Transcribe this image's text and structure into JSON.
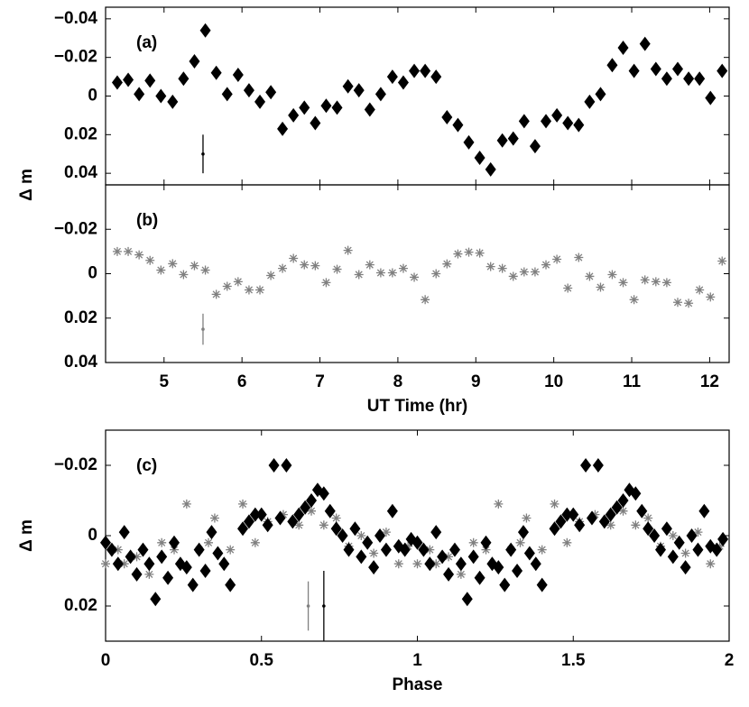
{
  "chart_data": [
    {
      "type": "scatter",
      "label": "(a)",
      "ylabel": "Δ m",
      "xlim": [
        4.25,
        12.25
      ],
      "xticks": [
        5,
        6,
        7,
        8,
        9,
        10,
        11,
        12
      ],
      "xtick_labels": false,
      "ylim": [
        -0.046,
        0.046
      ],
      "y_reversed": true,
      "yticks": [
        {
          "value": -0.04,
          "label": "−0.04"
        },
        {
          "value": -0.02,
          "label": "−0.02"
        },
        0,
        0.02,
        0.04
      ],
      "series": [
        {
          "marker": "diamond",
          "color": "#000000",
          "x": [
            4.4,
            4.54,
            4.68,
            4.82,
            4.96,
            5.11,
            5.25,
            5.39,
            5.53,
            5.67,
            5.81,
            5.95,
            6.09,
            6.23,
            6.37,
            6.52,
            6.66,
            6.8,
            6.94,
            7.08,
            7.22,
            7.36,
            7.5,
            7.64,
            7.78,
            7.93,
            8.07,
            8.21,
            8.35,
            8.49,
            8.63,
            8.77,
            8.91,
            9.05,
            9.19,
            9.34,
            9.48,
            9.62,
            9.76,
            9.9,
            10.04,
            10.18,
            10.32,
            10.46,
            10.6,
            10.75,
            10.89,
            11.03,
            11.17,
            11.31,
            11.45,
            11.59,
            11.73,
            11.87,
            12.01,
            12.16
          ],
          "values": [
            -0.007,
            -0.0084,
            -0.001,
            -0.008,
            0,
            0.003,
            -0.009,
            -0.018,
            -0.034,
            -0.012,
            -0.001,
            -0.011,
            -0.003,
            0.003,
            -0.002,
            0.017,
            0.01,
            0.006,
            0.014,
            0.005,
            0.006,
            -0.005,
            -0.003,
            0.007,
            -0.001,
            -0.01,
            -0.007,
            -0.013,
            -0.013,
            -0.01,
            0.011,
            0.015,
            0.024,
            0.032,
            0.038,
            0.023,
            0.022,
            0.013,
            0.026,
            0.013,
            0.01,
            0.014,
            0.015,
            0.003,
            -0.001,
            -0.016,
            -0.025,
            -0.013,
            -0.027,
            -0.014,
            -0.009,
            -0.014,
            -0.009,
            -0.009,
            0.001,
            -0.013
          ]
        }
      ],
      "error_bars": [
        {
          "x": 5.5,
          "y": 0.03,
          "error": 0.01,
          "color": "#000000"
        }
      ]
    },
    {
      "type": "scatter",
      "label": "(b)",
      "xlabel": "UT Time (hr)",
      "xlim": [
        4.25,
        12.25
      ],
      "xticks": [
        5,
        6,
        7,
        8,
        9,
        10,
        11,
        12
      ],
      "xtick_labels": true,
      "ylim": [
        -0.04,
        0.04
      ],
      "y_reversed": true,
      "yticks": [
        {
          "value": -0.02,
          "label": "−0.02"
        },
        0,
        0.02,
        0.04
      ],
      "series": [
        {
          "marker": "asterisk",
          "color": "#808080",
          "x": [
            4.4,
            4.54,
            4.68,
            4.82,
            4.96,
            5.11,
            5.25,
            5.39,
            5.53,
            5.67,
            5.81,
            5.95,
            6.09,
            6.23,
            6.37,
            6.52,
            6.66,
            6.8,
            6.94,
            7.08,
            7.22,
            7.36,
            7.5,
            7.64,
            7.78,
            7.93,
            8.07,
            8.21,
            8.35,
            8.49,
            8.63,
            8.77,
            8.91,
            9.05,
            9.19,
            9.34,
            9.48,
            9.62,
            9.76,
            9.9,
            10.04,
            10.18,
            10.32,
            10.46,
            10.6,
            10.75,
            10.89,
            11.03,
            11.17,
            11.31,
            11.45,
            11.59,
            11.73,
            11.87,
            12.01,
            12.16
          ],
          "values": [
            -0.01,
            -0.01,
            -0.0085,
            -0.006,
            -0.0016,
            -0.0045,
            0.0004,
            -0.0036,
            -0.0016,
            0.0093,
            0.0057,
            0.0036,
            0.0073,
            0.0073,
            0.0008,
            -0.0024,
            -0.0069,
            -0.004,
            -0.0036,
            0.004,
            -0.002,
            -0.0105,
            0.0004,
            -0.004,
            -0.0004,
            -0.0004,
            -0.0024,
            0.0016,
            0.0117,
            0,
            -0.0044,
            -0.0089,
            -0.0097,
            -0.0093,
            -0.0032,
            -0.0024,
            0.0012,
            -0.0008,
            -0.0008,
            -0.004,
            -0.0065,
            0.0065,
            -0.0073,
            0.0012,
            0.0061,
            0.0004,
            0.004,
            0.0117,
            0.0028,
            0.0036,
            0.004,
            0.0129,
            0.0133,
            0.0073,
            0.0105,
            -0.0057
          ]
        }
      ],
      "error_bars": [
        {
          "x": 5.5,
          "y": 0.025,
          "error": 0.007,
          "color": "#808080"
        }
      ]
    },
    {
      "type": "scatter",
      "label": "(c)",
      "ylabel": "Δ m",
      "xlabel": "Phase",
      "xlim": [
        0,
        2
      ],
      "xticks": [
        0,
        0.5,
        1,
        1.5,
        2
      ],
      "xtick_labels": true,
      "ylim": [
        -0.03,
        0.03
      ],
      "y_reversed": true,
      "yticks": [
        {
          "value": -0.02,
          "label": "−0.02"
        },
        0,
        0.02
      ],
      "series": [
        {
          "marker": "asterisk",
          "color": "#808080",
          "x": [
            0.0,
            0.04,
            0.06,
            0.1,
            0.14,
            0.18,
            0.22,
            0.26,
            0.3,
            0.33,
            0.35,
            0.4,
            0.44,
            0.48,
            0.52,
            0.57,
            0.62,
            0.66,
            0.7,
            0.74,
            0.78,
            0.82,
            0.86,
            0.9,
            0.94,
            0.97,
            1.0,
            1.04,
            1.06,
            1.1,
            1.14,
            1.18,
            1.22,
            1.26,
            1.3,
            1.33,
            1.35,
            1.4,
            1.44,
            1.48,
            1.52,
            1.57,
            1.62,
            1.66,
            1.7,
            1.74,
            1.78,
            1.82,
            1.86,
            1.9,
            1.94,
            1.97
          ],
          "values": [
            0.008,
            0.004,
            0.008,
            0.006,
            0.011,
            0.002,
            0.004,
            -0.009,
            0.004,
            0.002,
            -0.005,
            0.004,
            -0.009,
            0.002,
            -0.004,
            -0.006,
            -0.003,
            -0.007,
            -0.003,
            -0.005,
            0.003,
            0.0,
            0.005,
            -0.001,
            0.008,
            0.003,
            0.008,
            0.004,
            0.008,
            0.006,
            0.011,
            0.002,
            0.004,
            -0.009,
            0.004,
            0.002,
            -0.005,
            0.004,
            -0.009,
            0.002,
            -0.004,
            -0.006,
            -0.003,
            -0.007,
            -0.003,
            -0.005,
            0.003,
            0.0,
            0.005,
            -0.001,
            0.008,
            0.003
          ]
        },
        {
          "marker": "diamond",
          "color": "#000000",
          "x": [
            0.0,
            0.02,
            0.04,
            0.06,
            0.08,
            0.1,
            0.12,
            0.14,
            0.16,
            0.18,
            0.2,
            0.22,
            0.24,
            0.26,
            0.28,
            0.3,
            0.32,
            0.34,
            0.36,
            0.38,
            0.4,
            0.44,
            0.46,
            0.48,
            0.5,
            0.52,
            0.54,
            0.56,
            0.58,
            0.6,
            0.62,
            0.64,
            0.66,
            0.68,
            0.7,
            0.72,
            0.74,
            0.76,
            0.78,
            0.8,
            0.82,
            0.84,
            0.86,
            0.88,
            0.9,
            0.92,
            0.94,
            0.96,
            0.98,
            1.0,
            1.02,
            1.04,
            1.06,
            1.08,
            1.1,
            1.12,
            1.14,
            1.16,
            1.18,
            1.2,
            1.22,
            1.24,
            1.26,
            1.28,
            1.3,
            1.32,
            1.34,
            1.36,
            1.38,
            1.4,
            1.44,
            1.46,
            1.48,
            1.5,
            1.52,
            1.54,
            1.56,
            1.58,
            1.6,
            1.62,
            1.64,
            1.66,
            1.68,
            1.7,
            1.72,
            1.74,
            1.76,
            1.78,
            1.8,
            1.82,
            1.84,
            1.86,
            1.88,
            1.9,
            1.92,
            1.94,
            1.96,
            1.98
          ],
          "values": [
            0.002,
            0.004,
            0.008,
            -0.001,
            0.006,
            0.011,
            0.004,
            0.008,
            0.018,
            0.006,
            0.012,
            0.002,
            0.008,
            0.009,
            0.014,
            0.004,
            0.01,
            -0.001,
            0.005,
            0.008,
            0.014,
            -0.002,
            -0.004,
            -0.006,
            -0.006,
            -0.003,
            -0.02,
            -0.005,
            -0.02,
            -0.004,
            -0.006,
            -0.008,
            -0.01,
            -0.013,
            -0.012,
            -0.007,
            -0.002,
            0.0,
            0.004,
            -0.002,
            0.006,
            0.002,
            0.009,
            0.0,
            0.004,
            -0.007,
            0.003,
            0.004,
            0.001,
            0.002,
            0.004,
            0.008,
            -0.001,
            0.006,
            0.011,
            0.004,
            0.008,
            0.018,
            0.006,
            0.012,
            0.002,
            0.008,
            0.009,
            0.014,
            0.004,
            0.01,
            -0.001,
            0.005,
            0.008,
            0.014,
            -0.002,
            -0.004,
            -0.006,
            -0.006,
            -0.003,
            -0.02,
            -0.005,
            -0.02,
            -0.004,
            -0.006,
            -0.008,
            -0.01,
            -0.013,
            -0.012,
            -0.007,
            -0.002,
            0.0,
            0.004,
            -0.002,
            0.006,
            0.002,
            0.009,
            0.0,
            0.004,
            -0.007,
            0.003,
            0.004,
            0.001
          ]
        }
      ],
      "error_bars": [
        {
          "x": 0.65,
          "y": 0.02,
          "error": 0.007,
          "color": "#808080"
        },
        {
          "x": 0.7,
          "y": 0.02,
          "error": 0.01,
          "color": "#000000"
        }
      ]
    }
  ]
}
